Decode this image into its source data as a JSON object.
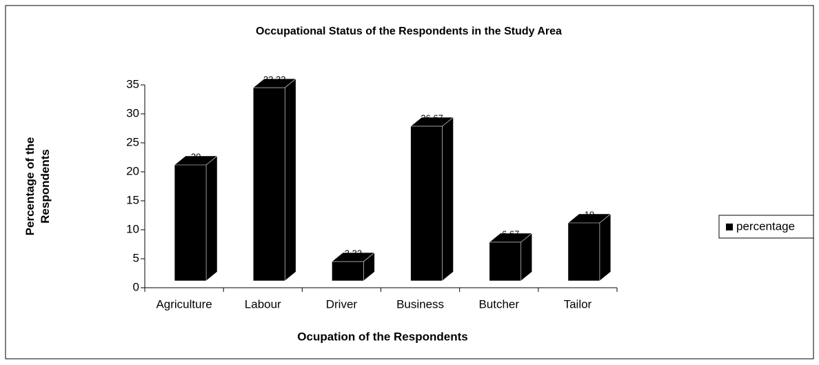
{
  "chart_data": {
    "type": "bar3d",
    "title": "Occupational Status of the Respondents in the Study Area",
    "x_label": "Ocupation of the Respondents",
    "y_label": "Percentage of the Respondents",
    "categories": [
      "Agriculture",
      "Labour",
      "Driver",
      "Business",
      "Butcher",
      "Tailor"
    ],
    "series": [
      {
        "name": "percentage",
        "color": "#000000",
        "values": [
          20,
          33.33,
          3.33,
          26.67,
          6.67,
          10
        ]
      }
    ],
    "ylim": [
      0,
      35
    ],
    "yticks": [
      0,
      5,
      10,
      15,
      20,
      25,
      30,
      35
    ],
    "legend": "right"
  }
}
